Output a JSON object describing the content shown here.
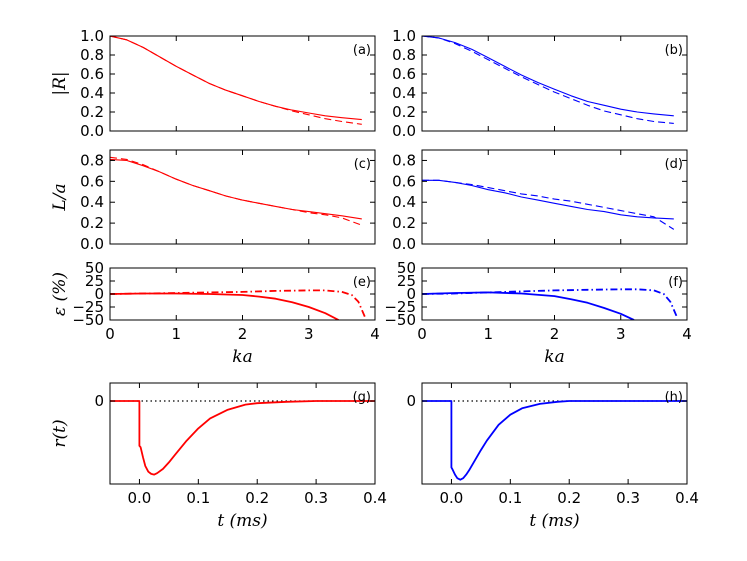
{
  "chart_data": [
    {
      "panel": "a",
      "label": "(a)",
      "type": "line",
      "xlim": [
        0,
        4
      ],
      "ylim": [
        0.0,
        1.0
      ],
      "yticks": [
        "0.0",
        "0.2",
        "0.4",
        "0.6",
        "0.8",
        "1.0"
      ],
      "ylabel": "|R|",
      "xlabel": "",
      "color": "#ff0000",
      "series": [
        {
          "name": "solid",
          "style": "solid",
          "x": [
            0,
            0.25,
            0.5,
            0.75,
            1,
            1.25,
            1.5,
            1.75,
            2,
            2.25,
            2.5,
            2.75,
            3,
            3.25,
            3.5,
            3.8
          ],
          "y": [
            1.0,
            0.96,
            0.88,
            0.78,
            0.68,
            0.59,
            0.5,
            0.43,
            0.37,
            0.31,
            0.26,
            0.22,
            0.19,
            0.16,
            0.14,
            0.12
          ]
        },
        {
          "name": "dashed",
          "style": "dashed",
          "x": [
            0,
            0.25,
            0.5,
            0.75,
            1,
            1.25,
            1.5,
            1.75,
            2,
            2.25,
            2.5,
            2.75,
            3,
            3.25,
            3.5,
            3.8
          ],
          "y": [
            1.0,
            0.96,
            0.88,
            0.78,
            0.68,
            0.59,
            0.5,
            0.43,
            0.37,
            0.31,
            0.26,
            0.21,
            0.17,
            0.13,
            0.1,
            0.07
          ]
        }
      ]
    },
    {
      "panel": "b",
      "label": "(b)",
      "type": "line",
      "xlim": [
        0,
        4
      ],
      "ylim": [
        0.0,
        1.0
      ],
      "yticks": [
        "0.0",
        "0.2",
        "0.4",
        "0.6",
        "0.8",
        "1.0"
      ],
      "ylabel": "",
      "xlabel": "",
      "color": "#0000ff",
      "series": [
        {
          "name": "solid",
          "style": "solid",
          "x": [
            0,
            0.25,
            0.5,
            0.75,
            1,
            1.25,
            1.5,
            1.75,
            2,
            2.25,
            2.5,
            2.75,
            3,
            3.25,
            3.5,
            3.8
          ],
          "y": [
            1.0,
            0.98,
            0.93,
            0.86,
            0.77,
            0.68,
            0.59,
            0.51,
            0.44,
            0.37,
            0.31,
            0.27,
            0.23,
            0.2,
            0.18,
            0.16
          ]
        },
        {
          "name": "dashed",
          "style": "dashed",
          "x": [
            0,
            0.25,
            0.5,
            0.75,
            1,
            1.25,
            1.5,
            1.75,
            2,
            2.25,
            2.5,
            2.75,
            3,
            3.25,
            3.5,
            3.8
          ],
          "y": [
            1.0,
            0.98,
            0.92,
            0.84,
            0.75,
            0.66,
            0.57,
            0.49,
            0.41,
            0.34,
            0.27,
            0.21,
            0.17,
            0.13,
            0.1,
            0.08
          ]
        }
      ]
    },
    {
      "panel": "c",
      "label": "(c)",
      "type": "line",
      "xlim": [
        0,
        4
      ],
      "ylim": [
        0.0,
        0.9
      ],
      "yticks": [
        "0.0",
        "0.2",
        "0.4",
        "0.6",
        "0.8"
      ],
      "ylabel": "L/a",
      "xlabel": "",
      "color": "#ff0000",
      "series": [
        {
          "name": "solid",
          "style": "solid",
          "x": [
            0,
            0.25,
            0.5,
            0.75,
            1,
            1.25,
            1.5,
            1.75,
            2,
            2.25,
            2.5,
            2.75,
            3,
            3.25,
            3.5,
            3.8
          ],
          "y": [
            0.81,
            0.8,
            0.75,
            0.69,
            0.62,
            0.56,
            0.51,
            0.46,
            0.42,
            0.39,
            0.36,
            0.33,
            0.31,
            0.29,
            0.27,
            0.24
          ]
        },
        {
          "name": "dashed",
          "style": "dashed",
          "x": [
            0,
            0.25,
            0.5,
            0.75,
            1,
            1.25,
            1.5,
            1.75,
            2,
            2.25,
            2.5,
            2.75,
            3,
            3.25,
            3.5,
            3.8
          ],
          "y": [
            0.83,
            0.81,
            0.76,
            0.69,
            0.62,
            0.56,
            0.51,
            0.46,
            0.42,
            0.39,
            0.36,
            0.33,
            0.3,
            0.28,
            0.25,
            0.18
          ]
        }
      ]
    },
    {
      "panel": "d",
      "label": "(d)",
      "type": "line",
      "xlim": [
        0,
        4
      ],
      "ylim": [
        0.0,
        0.9
      ],
      "yticks": [
        "0.0",
        "0.2",
        "0.4",
        "0.6",
        "0.8"
      ],
      "ylabel": "",
      "xlabel": "",
      "color": "#0000ff",
      "series": [
        {
          "name": "solid",
          "style": "solid",
          "x": [
            0,
            0.25,
            0.5,
            0.75,
            1,
            1.25,
            1.5,
            1.75,
            2,
            2.25,
            2.5,
            2.75,
            3,
            3.25,
            3.5,
            3.8
          ],
          "y": [
            0.61,
            0.61,
            0.59,
            0.56,
            0.52,
            0.49,
            0.45,
            0.42,
            0.39,
            0.36,
            0.33,
            0.31,
            0.28,
            0.26,
            0.25,
            0.24
          ]
        },
        {
          "name": "dashed",
          "style": "dashed",
          "x": [
            0,
            0.25,
            0.5,
            0.75,
            1,
            1.25,
            1.5,
            1.75,
            2,
            2.25,
            2.5,
            2.75,
            3,
            3.25,
            3.5,
            3.8
          ],
          "y": [
            0.61,
            0.61,
            0.59,
            0.57,
            0.54,
            0.51,
            0.48,
            0.46,
            0.43,
            0.41,
            0.38,
            0.35,
            0.32,
            0.29,
            0.26,
            0.14
          ]
        }
      ]
    },
    {
      "panel": "e",
      "label": "(e)",
      "type": "line",
      "xlim": [
        0,
        4
      ],
      "ylim": [
        -50,
        50
      ],
      "yticks": [
        "−50",
        "−25",
        "0",
        "25",
        "50"
      ],
      "xticks": [
        "0",
        "1",
        "2",
        "3",
        "4"
      ],
      "ylabel": "ε (%)",
      "xlabel": "ka",
      "color": "#ff0000",
      "series": [
        {
          "name": "solid",
          "style": "solid",
          "x": [
            0,
            0.5,
            1,
            1.5,
            2,
            2.25,
            2.5,
            2.75,
            3,
            3.25,
            3.45
          ],
          "y": [
            0,
            1,
            1,
            0,
            -2,
            -5,
            -9,
            -16,
            -25,
            -37,
            -50
          ]
        },
        {
          "name": "dashdot",
          "style": "dashdot",
          "x": [
            0,
            0.5,
            1,
            1.5,
            2,
            2.5,
            3,
            3.25,
            3.5,
            3.65,
            3.75,
            3.85
          ],
          "y": [
            0,
            1,
            2,
            3,
            4,
            6,
            7,
            7,
            4,
            -2,
            -15,
            -45
          ]
        }
      ]
    },
    {
      "panel": "f",
      "label": "(f)",
      "type": "line",
      "xlim": [
        0,
        4
      ],
      "ylim": [
        -50,
        50
      ],
      "yticks": [
        "−50",
        "−25",
        "0",
        "25",
        "50"
      ],
      "xticks": [
        "0",
        "1",
        "2",
        "3",
        "4"
      ],
      "ylabel": "",
      "xlabel": "ka",
      "color": "#0000ff",
      "series": [
        {
          "name": "solid",
          "style": "solid",
          "x": [
            0,
            0.5,
            1,
            1.5,
            2,
            2.25,
            2.5,
            2.75,
            3,
            3.2
          ],
          "y": [
            0,
            2,
            3,
            1,
            -4,
            -10,
            -17,
            -27,
            -38,
            -50
          ]
        },
        {
          "name": "dashdot",
          "style": "dashdot",
          "x": [
            0,
            0.5,
            1,
            1.5,
            2,
            2.5,
            3,
            3.25,
            3.5,
            3.65,
            3.75,
            3.85
          ],
          "y": [
            0,
            1,
            3,
            5,
            7,
            8,
            9,
            9,
            7,
            0,
            -15,
            -45
          ]
        }
      ]
    },
    {
      "panel": "g",
      "label": "(g)",
      "type": "line",
      "xlim": [
        -0.05,
        0.4
      ],
      "ylim": [
        -1.15,
        0.25
      ],
      "yticks": [
        "0"
      ],
      "xticks": [
        "0.0",
        "0.1",
        "0.2",
        "0.3",
        "0.4"
      ],
      "ylabel": "r(t)",
      "xlabel": "t (ms)",
      "color": "#ff0000",
      "baseline": 0,
      "series": [
        {
          "name": "response",
          "style": "solid",
          "x": [
            -0.05,
            0,
            0,
            0.002,
            0.006,
            0.01,
            0.015,
            0.02,
            0.025,
            0.03,
            0.04,
            0.05,
            0.06,
            0.08,
            0.1,
            0.12,
            0.15,
            0.18,
            0.2,
            0.25,
            0.3,
            0.35,
            0.4
          ],
          "y": [
            0,
            0,
            -0.62,
            -0.64,
            -0.78,
            -0.9,
            -0.98,
            -1.01,
            -1.02,
            -1.0,
            -0.94,
            -0.85,
            -0.75,
            -0.55,
            -0.38,
            -0.24,
            -0.12,
            -0.05,
            -0.03,
            -0.01,
            0,
            0,
            0
          ]
        }
      ]
    },
    {
      "panel": "h",
      "label": "(h)",
      "type": "line",
      "xlim": [
        -0.05,
        0.4
      ],
      "ylim": [
        -1.15,
        0.25
      ],
      "yticks": [
        "0"
      ],
      "xticks": [
        "0.0",
        "0.1",
        "0.2",
        "0.3",
        "0.4"
      ],
      "ylabel": "",
      "xlabel": "t (ms)",
      "color": "#0000ff",
      "baseline": 0,
      "series": [
        {
          "name": "response",
          "style": "solid",
          "x": [
            -0.05,
            0,
            0,
            0.002,
            0.006,
            0.01,
            0.015,
            0.02,
            0.025,
            0.03,
            0.04,
            0.05,
            0.06,
            0.08,
            0.1,
            0.12,
            0.15,
            0.18,
            0.2,
            0.25,
            0.3,
            0.35,
            0.4
          ],
          "y": [
            0,
            0,
            -0.92,
            -0.95,
            -1.02,
            -1.07,
            -1.09,
            -1.07,
            -1.02,
            -0.96,
            -0.82,
            -0.68,
            -0.55,
            -0.33,
            -0.19,
            -0.1,
            -0.04,
            -0.01,
            0,
            0,
            0,
            0,
            0
          ]
        }
      ]
    }
  ]
}
